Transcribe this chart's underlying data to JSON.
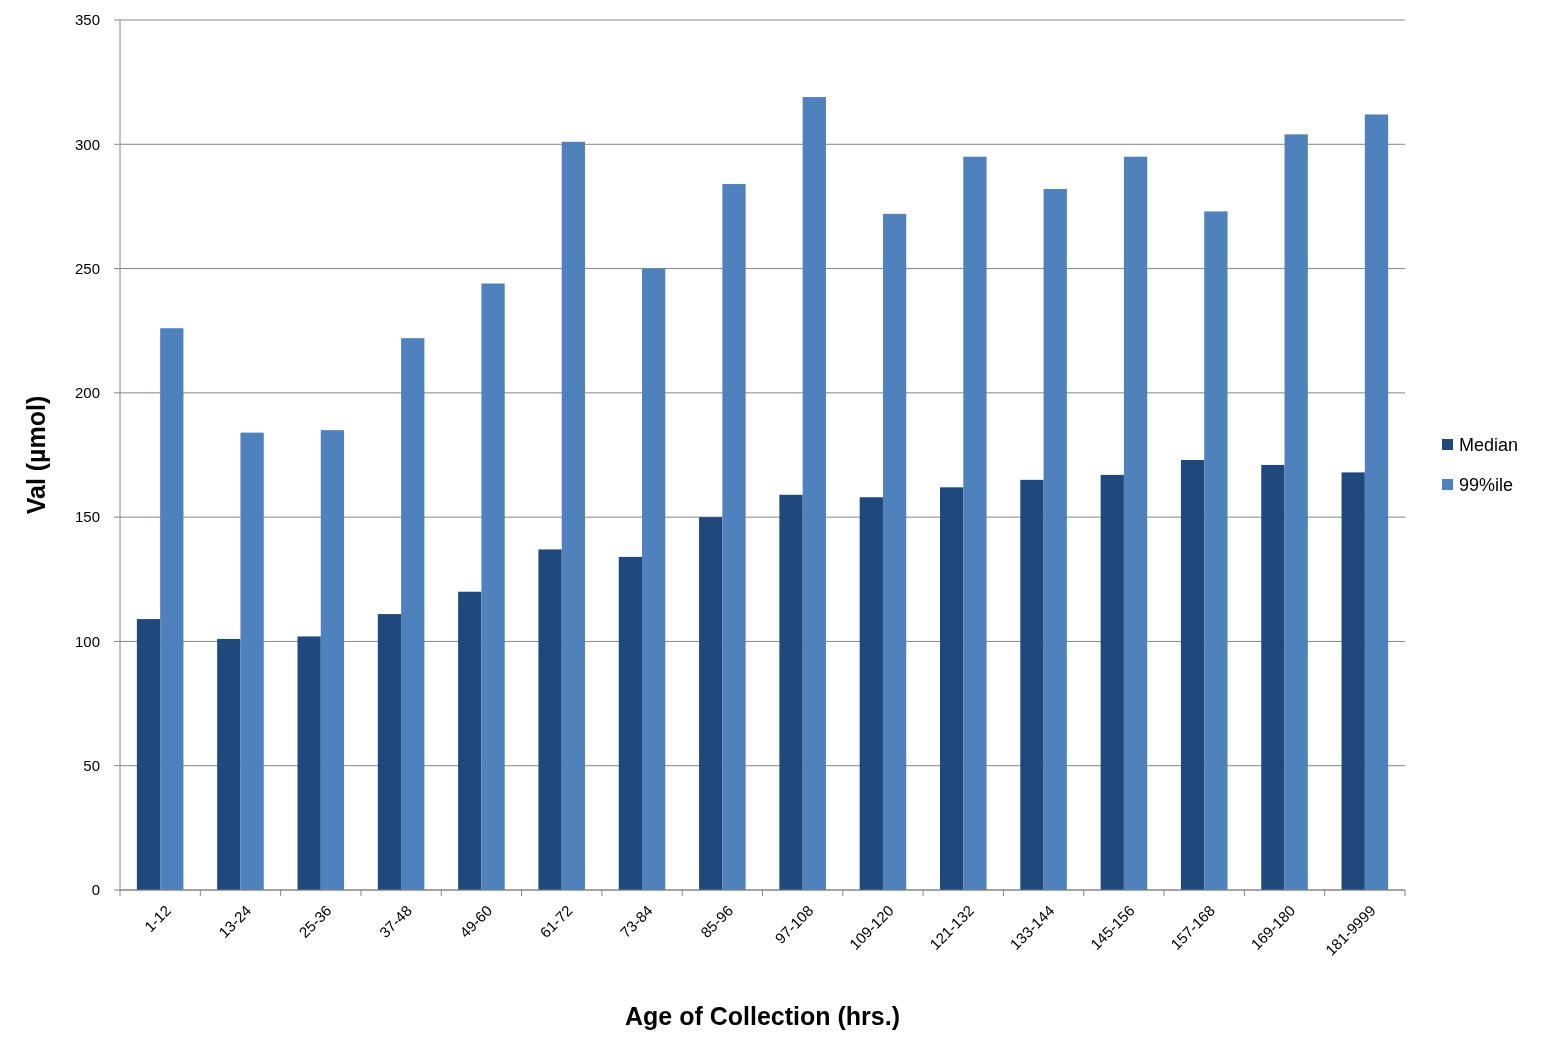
{
  "chart_data": {
    "type": "bar",
    "xlabel": "Age of Collection (hrs.)",
    "ylabel": "Val (µmol)",
    "categories": [
      "1-12",
      "13-24",
      "25-36",
      "37-48",
      "49-60",
      "61-72",
      "73-84",
      "85-96",
      "97-108",
      "109-120",
      "121-132",
      "133-144",
      "145-156",
      "157-168",
      "169-180",
      "181-9999"
    ],
    "series": [
      {
        "name": "Median",
        "color": "#1f497d",
        "values": [
          109,
          101,
          102,
          111,
          120,
          137,
          134,
          150,
          159,
          158,
          162,
          165,
          167,
          173,
          171,
          168
        ]
      },
      {
        "name": "99%ile",
        "color": "#4f81bd",
        "values": [
          226,
          184,
          185,
          222,
          244,
          301,
          250,
          284,
          319,
          272,
          295,
          282,
          295,
          273,
          304,
          312
        ]
      }
    ],
    "ylim": [
      0,
      350
    ],
    "yticks": [
      0,
      50,
      100,
      150,
      200,
      250,
      300,
      350
    ],
    "grid": "y",
    "legend": "right"
  }
}
